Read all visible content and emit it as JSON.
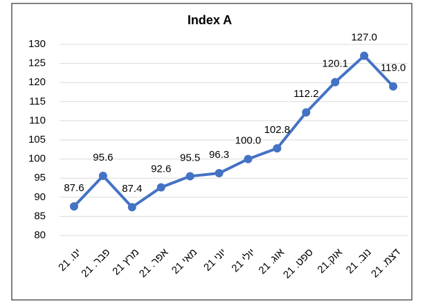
{
  "chart_data": {
    "type": "line",
    "title": "Index A",
    "categories": [
      "ינו. 21",
      "פבר. 21",
      "מרץ 21",
      "אפר. 21",
      "מאי 21",
      "יוני 21",
      "יולי 21",
      "אוג. 21",
      "ספט. 21",
      "אוק.21",
      "נוב. 21",
      "דצמ. 21"
    ],
    "series": [
      {
        "name": "Index A",
        "color": "#4472c4",
        "values": [
          87.6,
          95.6,
          87.4,
          92.6,
          95.5,
          96.3,
          100.0,
          102.8,
          112.2,
          120.1,
          127.0,
          119.0
        ],
        "value_labels": [
          "87.6",
          "95.6",
          "87.4",
          "92.6",
          "95.5",
          "96.3",
          "100.0",
          "102.8",
          "112.2",
          "120.1",
          "127.0",
          "119.0"
        ]
      }
    ],
    "ylim": [
      80,
      130
    ],
    "yticks": [
      80,
      85,
      90,
      95,
      100,
      105,
      110,
      115,
      120,
      125,
      130
    ],
    "grid": true
  }
}
